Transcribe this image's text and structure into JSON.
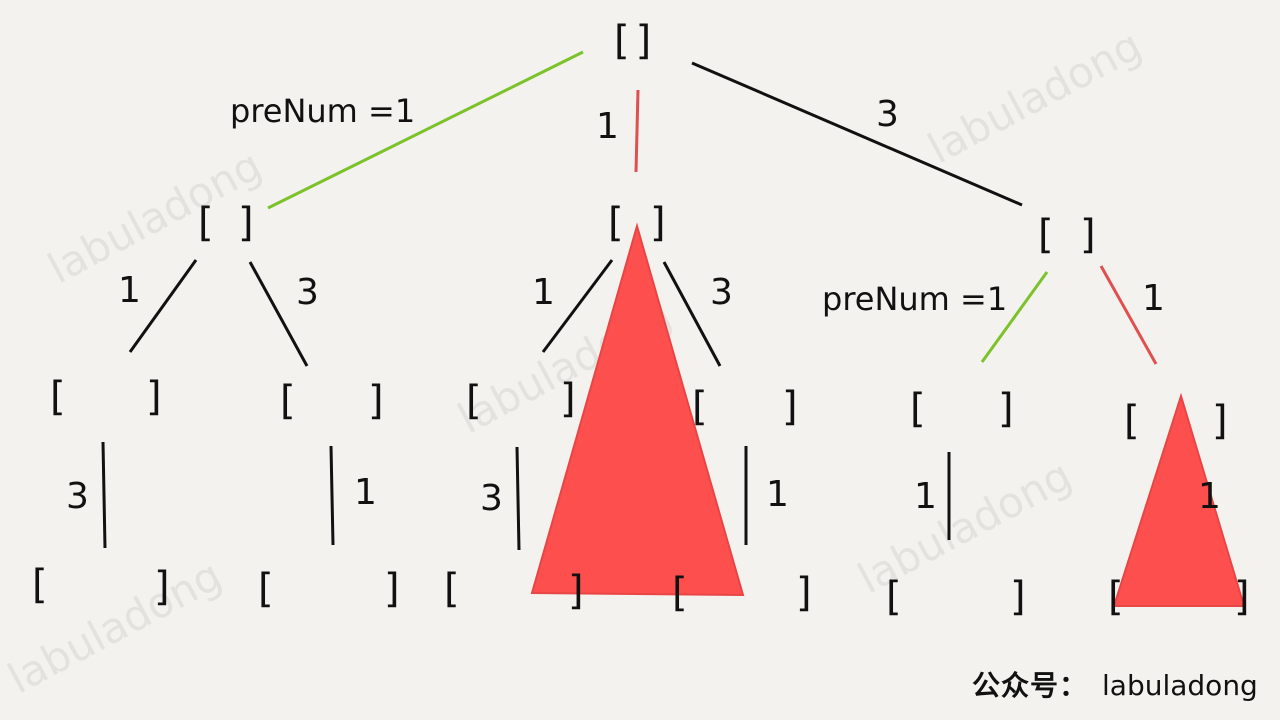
{
  "watermark_text": "labuladong",
  "footer": {
    "seal_text": "公众号：",
    "handle": "labuladong"
  },
  "colors": {
    "green": "#7cc22a",
    "red": "#e05050",
    "fill": "#fe4f4f",
    "ink": "#111111"
  },
  "root_bracket": "[]",
  "edge_labels": {
    "root_left": "preNum =1",
    "root_mid": "1",
    "root_right": "3",
    "a_left": "1",
    "a_right": "3",
    "b_left": "1",
    "b_right": "3",
    "c_left": "preNum =1",
    "c_right": "1",
    "leaf1": "3",
    "leaf2": "1",
    "leaf3": "3",
    "leaf4": "1",
    "leaf5": "1",
    "leaf6": "1"
  },
  "brackets": {
    "open": "[",
    "close": "]"
  }
}
